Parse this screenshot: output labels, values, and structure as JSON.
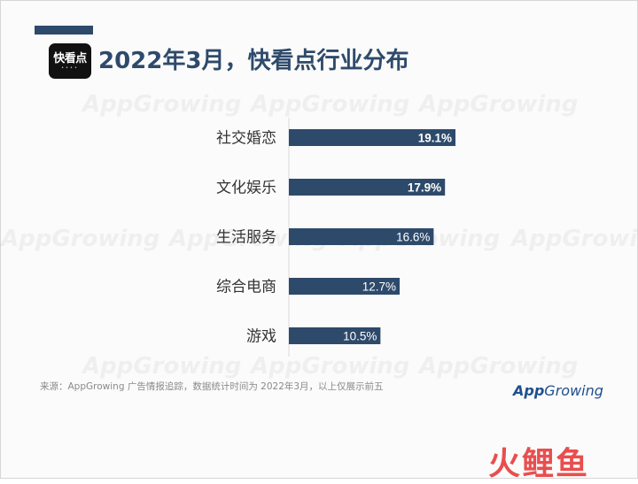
{
  "title": "2022年3月，快看点行业分布",
  "app_logo_text": "快看点",
  "watermark_text": "AppGrowing",
  "source_note": "来源：AppGrowing 广告情报追踪，数据统计时间为 2022年3月，以上仅展示前五",
  "brand_logo": {
    "part1": "App",
    "part2": "Growing"
  },
  "footer_mark": "火鲤鱼",
  "colors": {
    "bar": "#2e4a6b",
    "title": "#2e4a6b",
    "footer": "#e94e4e"
  },
  "chart_data": {
    "type": "bar",
    "orientation": "horizontal",
    "categories": [
      "社交婚恋",
      "文化娱乐",
      "生活服务",
      "综合电商",
      "游戏"
    ],
    "values": [
      19.1,
      17.9,
      16.6,
      12.7,
      10.5
    ],
    "labels": [
      "19.1%",
      "17.9%",
      "16.6%",
      "12.7%",
      "10.5%"
    ],
    "xlim": [
      0,
      19.1
    ],
    "grid": false,
    "legend": "none"
  }
}
